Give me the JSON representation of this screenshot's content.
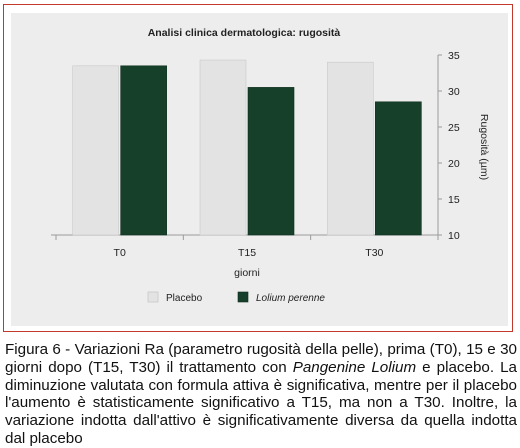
{
  "chart_data": {
    "type": "bar",
    "title": "Analisi clinica dermatologica: rugosità",
    "categories": [
      "T0",
      "T15",
      "T30"
    ],
    "series": [
      {
        "name": "Placebo",
        "values": [
          33.5,
          34.3,
          34.0
        ],
        "color": "#e3e3e3"
      },
      {
        "name": "Lolium perenne",
        "values": [
          33.5,
          30.5,
          28.5
        ],
        "color": "#16402a"
      }
    ],
    "xlabel": "giorni",
    "ylabel": "Rugosità (µm)",
    "ylim": [
      10,
      35
    ],
    "yticks": [
      10,
      15,
      20,
      25,
      30,
      35
    ],
    "y_axis_position": "right",
    "grid": false,
    "legend_position": "bottom-left"
  },
  "caption": {
    "part1": "Figura 6 - Variazioni Ra (parametro rugosità della pelle), prima (T0), 15 e 30 giorni dopo (T15, T30) il trattamento con ",
    "italic": "Pangenine Lolium",
    "part2": " e placebo. La diminuzione valutata con formula attiva è significativa, mentre per il placebo l'aumento è statisticamente significativo a T15, ma non a T30. Inoltre, la variazione indotta dall'attivo è significativamente diversa da quella indotta dal placebo"
  }
}
